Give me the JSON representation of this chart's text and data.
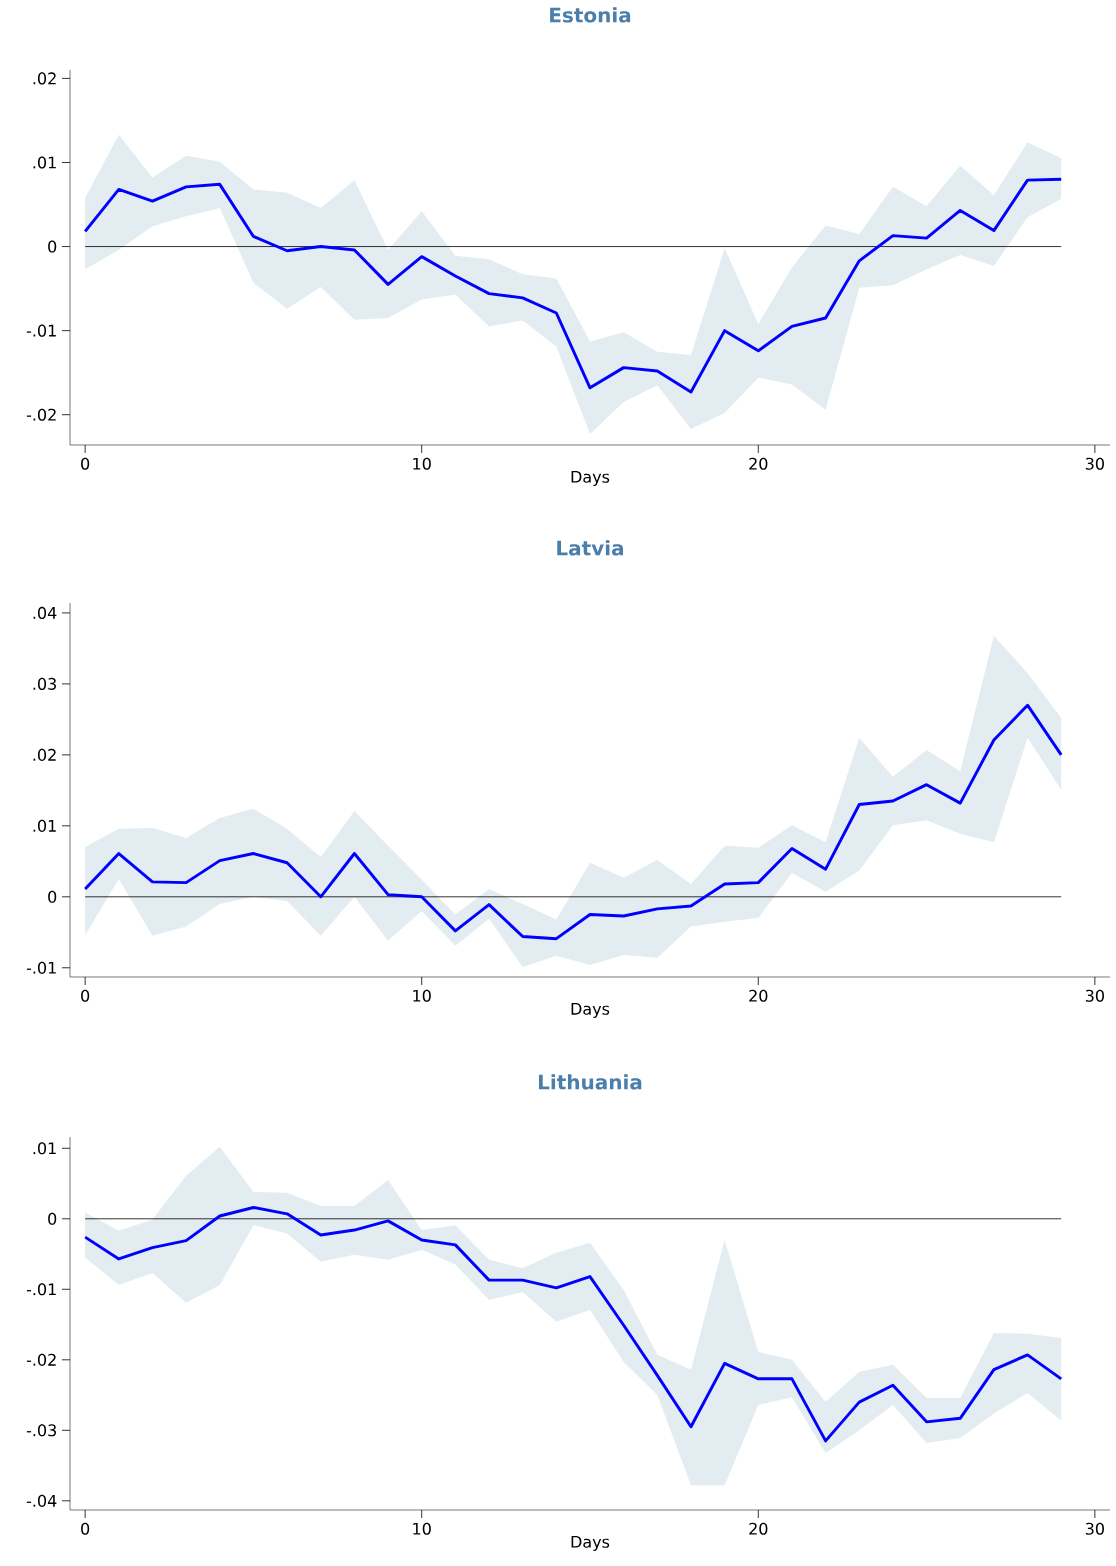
{
  "chart_data": [
    {
      "type": "line",
      "title": "Estonia",
      "xlabel": "Days",
      "x": [
        0,
        1,
        2,
        3,
        4,
        5,
        6,
        7,
        8,
        9,
        10,
        11,
        12,
        13,
        14,
        15,
        16,
        17,
        18,
        19,
        20,
        21,
        22,
        23,
        24,
        25,
        26,
        27,
        28,
        29
      ],
      "series": [
        {
          "color": "#0000ff",
          "values": [
            0.0018,
            0.0068,
            0.0054,
            0.0071,
            0.0074,
            0.0012,
            -0.0005,
            0.0,
            -0.0004,
            -0.0045,
            -0.0012,
            -0.0035,
            -0.0056,
            -0.0061,
            -0.0079,
            -0.0168,
            -0.0144,
            -0.0148,
            -0.0173,
            -0.01,
            -0.0124,
            -0.0095,
            -0.0085,
            -0.0017,
            0.0013,
            0.001,
            0.0043,
            0.0019,
            0.0079,
            0.008
          ],
          "upper": [
            0.0058,
            0.0133,
            0.0082,
            0.0108,
            0.0101,
            0.0068,
            0.0064,
            0.0046,
            0.0079,
            -0.0004,
            0.0042,
            -0.0011,
            -0.0015,
            -0.0033,
            -0.0038,
            -0.0113,
            -0.0102,
            -0.0125,
            -0.0129,
            -0.0002,
            -0.0092,
            -0.0025,
            0.0025,
            0.0015,
            0.0071,
            0.0048,
            0.0096,
            0.0061,
            0.0124,
            0.0105
          ],
          "lower": [
            -0.0027,
            -0.0004,
            0.0024,
            0.0036,
            0.0046,
            -0.0043,
            -0.0074,
            -0.0048,
            -0.0087,
            -0.0085,
            -0.0063,
            -0.0057,
            -0.0095,
            -0.0088,
            -0.0119,
            -0.0223,
            -0.0185,
            -0.0165,
            -0.0217,
            -0.0198,
            -0.0156,
            -0.0164,
            -0.0194,
            -0.0049,
            -0.0046,
            -0.0027,
            -0.001,
            -0.0023,
            0.0035,
            0.0057
          ]
        }
      ],
      "xlim": [
        -0.45,
        30.45
      ],
      "xticks": [
        0,
        10,
        20,
        30
      ],
      "ylim": [
        -0.0236,
        0.021
      ],
      "yticks": [
        {
          "value": -0.02,
          "label": "-.02"
        },
        {
          "value": -0.01,
          "label": "-.01"
        },
        0,
        {
          "value": 0.01,
          "label": ".01"
        },
        {
          "value": 0.02,
          "label": ".02"
        }
      ],
      "ref_lines": [
        {
          "axis": "y",
          "value": 0,
          "color": "#000000"
        }
      ]
    },
    {
      "type": "line",
      "title": "Latvia",
      "xlabel": "Days",
      "x": [
        0,
        1,
        2,
        3,
        4,
        5,
        6,
        7,
        8,
        9,
        10,
        11,
        12,
        13,
        14,
        15,
        16,
        17,
        18,
        19,
        20,
        21,
        22,
        23,
        24,
        25,
        26,
        27,
        28,
        29
      ],
      "series": [
        {
          "color": "#0000ff",
          "values": [
            0.0011,
            0.0061,
            0.0021,
            0.002,
            0.0051,
            0.0061,
            0.0048,
            0.0,
            0.0061,
            0.0003,
            0.0,
            -0.0048,
            -0.0011,
            -0.0056,
            -0.0059,
            -0.0025,
            -0.0027,
            -0.0017,
            -0.0013,
            0.0018,
            0.002,
            0.0068,
            0.0039,
            0.013,
            0.0135,
            0.0158,
            0.0132,
            0.0221,
            0.027,
            0.02
          ],
          "upper": [
            0.007,
            0.0096,
            0.0097,
            0.0083,
            0.0111,
            0.0124,
            0.0096,
            0.0056,
            0.0121,
            0.0072,
            0.0024,
            -0.0025,
            0.0011,
            -0.001,
            -0.0032,
            0.0048,
            0.0027,
            0.0052,
            0.0018,
            0.0072,
            0.0069,
            0.0101,
            0.0077,
            0.0224,
            0.0169,
            0.0207,
            0.0177,
            0.0368,
            0.0315,
            0.0252
          ],
          "lower": [
            -0.0054,
            0.0025,
            -0.0055,
            -0.0042,
            -0.001,
            0.0,
            -0.0006,
            -0.0055,
            0.0,
            -0.0062,
            -0.002,
            -0.0069,
            -0.0031,
            -0.0099,
            -0.0083,
            -0.0096,
            -0.0082,
            -0.0086,
            -0.0042,
            -0.0035,
            -0.003,
            0.0034,
            0.0007,
            0.0037,
            0.0101,
            0.0108,
            0.0089,
            0.0077,
            0.0224,
            0.0151
          ]
        }
      ],
      "xlim": [
        -0.45,
        30.45
      ],
      "xticks": [
        0,
        10,
        20,
        30
      ],
      "ylim": [
        -0.0113,
        0.0414
      ],
      "yticks": [
        {
          "value": -0.01,
          "label": "-.01"
        },
        0,
        {
          "value": 0.01,
          "label": ".01"
        },
        {
          "value": 0.02,
          "label": ".02"
        },
        {
          "value": 0.03,
          "label": ".03"
        },
        {
          "value": 0.04,
          "label": ".04"
        }
      ],
      "ref_lines": [
        {
          "axis": "y",
          "value": 0,
          "color": "#000000"
        }
      ]
    },
    {
      "type": "line",
      "title": "Lithuania",
      "xlabel": "Days",
      "x": [
        0,
        1,
        2,
        3,
        4,
        5,
        6,
        7,
        8,
        9,
        10,
        11,
        12,
        13,
        14,
        15,
        16,
        17,
        18,
        19,
        20,
        21,
        22,
        23,
        24,
        25,
        26,
        27,
        28,
        29
      ],
      "series": [
        {
          "color": "#0000ff",
          "values": [
            -0.0026,
            -0.0057,
            -0.0041,
            -0.0031,
            0.0004,
            0.0016,
            0.0007,
            -0.0023,
            -0.0016,
            -0.0003,
            -0.003,
            -0.0037,
            -0.0087,
            -0.0087,
            -0.0098,
            -0.0082,
            -0.0151,
            -0.0222,
            -0.0295,
            -0.0205,
            -0.0227,
            -0.0227,
            -0.0315,
            -0.026,
            -0.0236,
            -0.0288,
            -0.0283,
            -0.0214,
            -0.0193,
            -0.0227
          ],
          "upper": [
            0.0009,
            -0.0017,
            -0.0001,
            0.0061,
            0.0102,
            0.0038,
            0.0037,
            0.0018,
            0.0018,
            0.0055,
            -0.0016,
            -0.0009,
            -0.0058,
            -0.007,
            -0.0048,
            -0.0034,
            -0.0101,
            -0.0193,
            -0.0214,
            -0.003,
            -0.0189,
            -0.02,
            -0.026,
            -0.0217,
            -0.0207,
            -0.0254,
            -0.0254,
            -0.0162,
            -0.0163,
            -0.0169
          ],
          "lower": [
            -0.0055,
            -0.0094,
            -0.0077,
            -0.0119,
            -0.0094,
            -0.0009,
            -0.0021,
            -0.0061,
            -0.0051,
            -0.0058,
            -0.0044,
            -0.0065,
            -0.0115,
            -0.0104,
            -0.0146,
            -0.0129,
            -0.0203,
            -0.025,
            -0.0378,
            -0.0378,
            -0.0264,
            -0.0253,
            -0.0332,
            -0.03,
            -0.0264,
            -0.0318,
            -0.0311,
            -0.0276,
            -0.0247,
            -0.0286
          ]
        }
      ],
      "xlim": [
        -0.45,
        30.45
      ],
      "xticks": [
        0,
        10,
        20,
        30
      ],
      "ylim": [
        -0.0413,
        0.0116
      ],
      "yticks": [
        {
          "value": -0.04,
          "label": "-.04"
        },
        {
          "value": -0.03,
          "label": "-.03"
        },
        {
          "value": -0.02,
          "label": "-.02"
        },
        {
          "value": -0.01,
          "label": "-.01"
        },
        0,
        {
          "value": 0.01,
          "label": ".01"
        }
      ],
      "ref_lines": [
        {
          "axis": "y",
          "value": 0,
          "color": "#000000"
        }
      ]
    }
  ]
}
